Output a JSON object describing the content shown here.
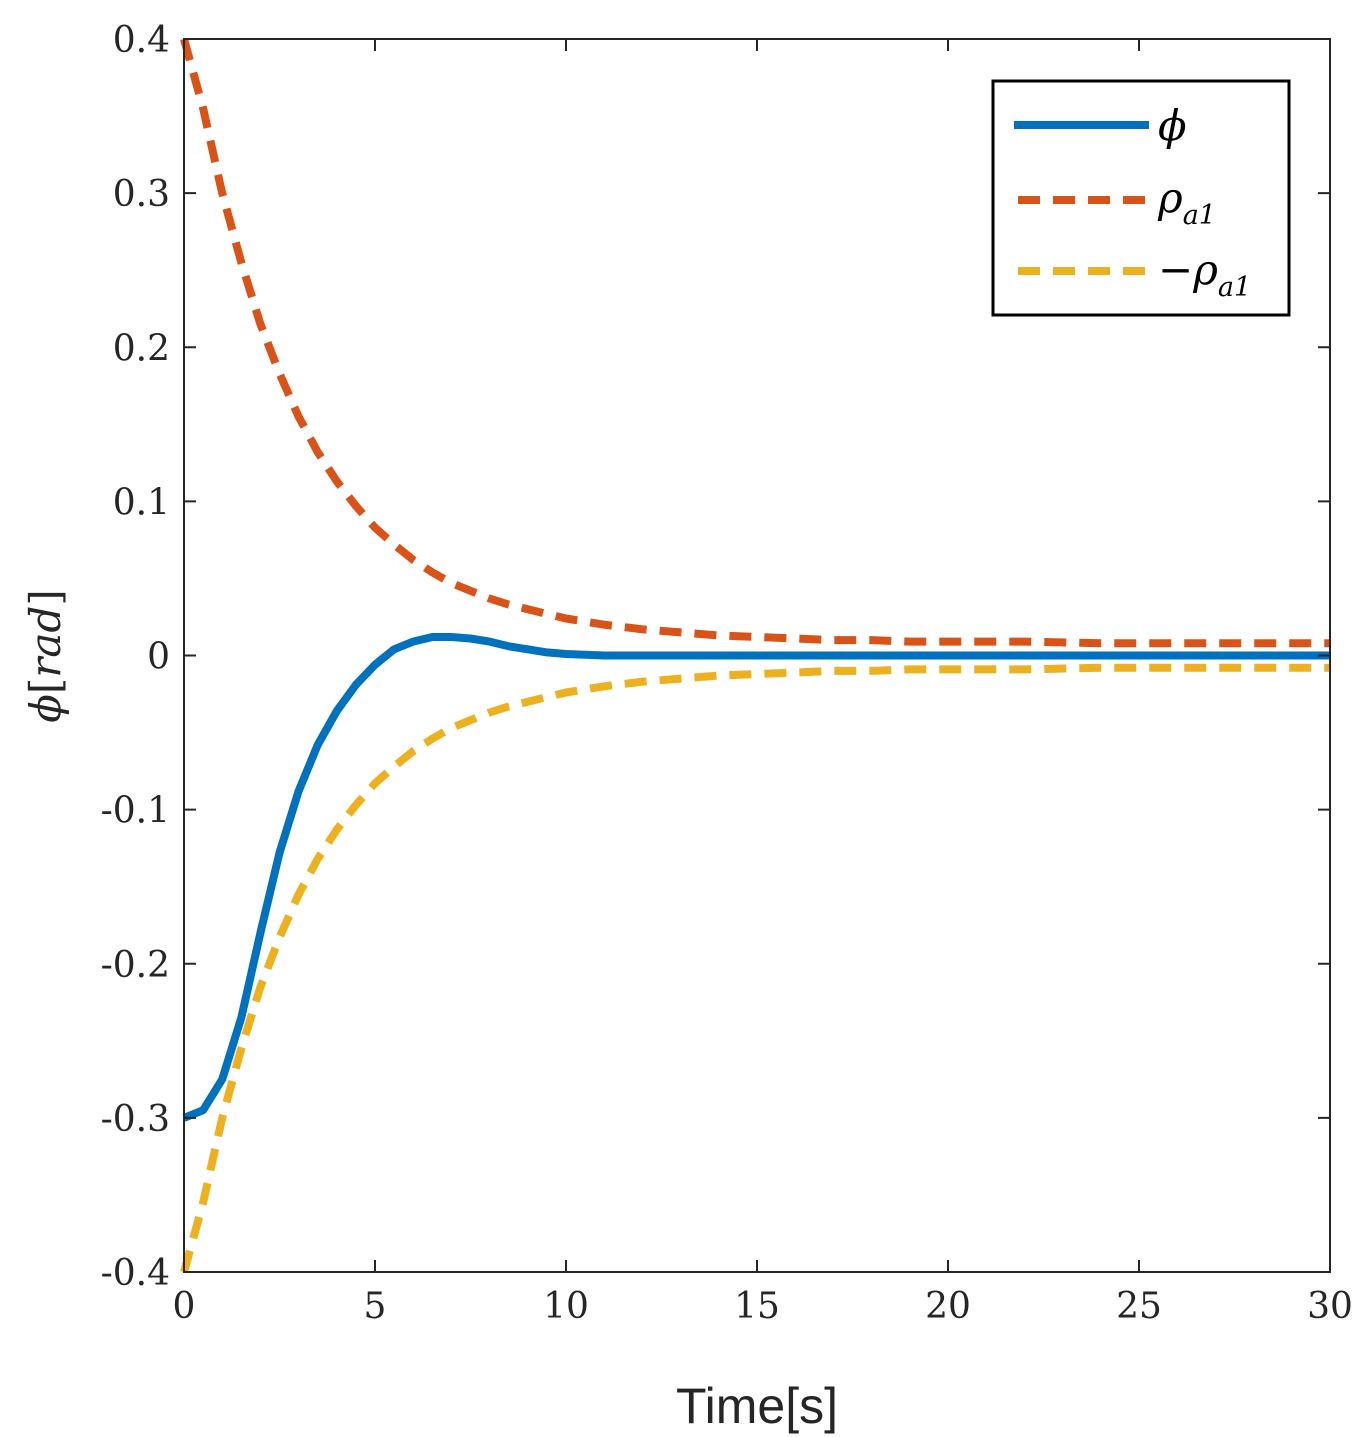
{
  "colors": {
    "phi": "#0072BD",
    "rho_upper": "#D95319",
    "rho_lower": "#EDB120",
    "axis": "#262626"
  },
  "chart_data": {
    "type": "line",
    "title": "",
    "xlabel": "Time[s]",
    "ylabel": {
      "symbol": "ϕ",
      "bracket_open": "[",
      "unit": "rad",
      "bracket_close": "]"
    },
    "xlim": [
      0,
      30
    ],
    "ylim": [
      -0.4,
      0.4
    ],
    "xticks": [
      0,
      5,
      10,
      15,
      20,
      25,
      30
    ],
    "xtick_labels": [
      "0",
      "5",
      "10",
      "15",
      "20",
      "25",
      "30"
    ],
    "yticks": [
      -0.4,
      -0.3,
      -0.2,
      -0.1,
      0,
      0.1,
      0.2,
      0.3,
      0.4
    ],
    "ytick_labels": [
      "-0.4",
      "-0.3",
      "-0.2",
      "-0.1",
      "0",
      "0.1",
      "0.2",
      "0.3",
      "0.4"
    ],
    "grid": false,
    "legend_position": "top-right",
    "x": [
      0,
      0.5,
      1,
      1.5,
      2,
      2.5,
      3,
      3.5,
      4,
      4.5,
      5,
      5.5,
      6,
      6.5,
      7,
      7.5,
      8,
      8.5,
      9,
      9.5,
      10,
      11,
      12,
      13,
      14,
      15,
      16,
      17,
      18,
      19,
      20,
      22,
      24,
      26,
      28,
      30
    ],
    "series": [
      {
        "name": "ϕ",
        "legend": {
          "main": "ϕ",
          "sub": "",
          "prefix": ""
        },
        "style": "solid",
        "values": [
          -0.3,
          -0.295,
          -0.275,
          -0.235,
          -0.18,
          -0.128,
          -0.088,
          -0.058,
          -0.036,
          -0.019,
          -0.006,
          0.004,
          0.009,
          0.012,
          0.012,
          0.011,
          0.009,
          0.006,
          0.004,
          0.002,
          0.001,
          0.0,
          0.0,
          0.0,
          0.0,
          0.0,
          0.0,
          0.0,
          0.0,
          0.0,
          0.0,
          0.0,
          0.0,
          0.0,
          0.0,
          0.0
        ]
      },
      {
        "name": "ρa1",
        "legend": {
          "main": "ρ",
          "sub": "a1",
          "prefix": ""
        },
        "style": "dashed",
        "values": [
          0.4,
          0.355,
          0.3,
          0.255,
          0.215,
          0.183,
          0.155,
          0.132,
          0.113,
          0.097,
          0.083,
          0.072,
          0.062,
          0.054,
          0.047,
          0.042,
          0.037,
          0.033,
          0.03,
          0.027,
          0.024,
          0.02,
          0.017,
          0.015,
          0.013,
          0.012,
          0.011,
          0.01,
          0.01,
          0.009,
          0.009,
          0.009,
          0.008,
          0.008,
          0.008,
          0.008
        ]
      },
      {
        "name": "-ρa1",
        "legend": {
          "main": "ρ",
          "sub": "a1",
          "prefix": "−"
        },
        "style": "dashed",
        "values": [
          -0.4,
          -0.355,
          -0.3,
          -0.255,
          -0.215,
          -0.183,
          -0.155,
          -0.132,
          -0.113,
          -0.097,
          -0.083,
          -0.072,
          -0.062,
          -0.054,
          -0.047,
          -0.042,
          -0.037,
          -0.033,
          -0.03,
          -0.027,
          -0.024,
          -0.02,
          -0.017,
          -0.015,
          -0.013,
          -0.012,
          -0.011,
          -0.01,
          -0.01,
          -0.009,
          -0.009,
          -0.009,
          -0.008,
          -0.008,
          -0.008,
          -0.008
        ]
      }
    ]
  }
}
